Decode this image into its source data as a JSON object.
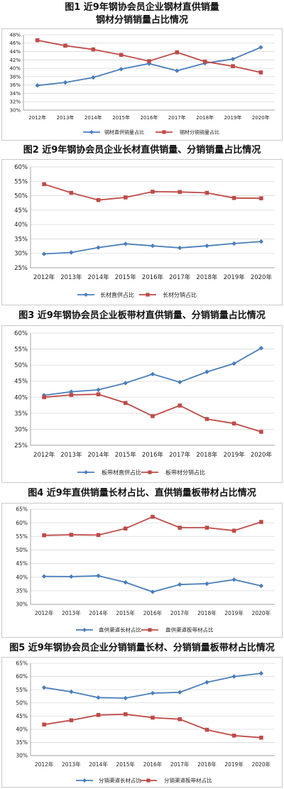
{
  "charts": [
    {
      "title": [
        "图1 近9年钢协会员企业钢材直供销量",
        "钢材分销销量占比情况"
      ],
      "chart_data": {
        "type": "line",
        "categories": [
          "2012年",
          "2013年",
          "2014年",
          "2015年",
          "2016年",
          "2017年",
          "2018年",
          "2019年",
          "2020年"
        ],
        "ylim": [
          30,
          48
        ],
        "ystep": 2,
        "yticks": [
          "30%",
          "32%",
          "34%",
          "36%",
          "38%",
          "40%",
          "42%",
          "44%",
          "46%",
          "48%"
        ],
        "series": [
          {
            "name": "钢材直供销量占比",
            "color": "#4a7ebb",
            "marker": "diamond",
            "values": [
              35.9,
              36.6,
              37.8,
              39.8,
              41.1,
              39.4,
              41.2,
              42.2,
              45.0
            ]
          },
          {
            "name": "钢材分销销量占比",
            "color": "#be4b48",
            "marker": "square",
            "values": [
              46.7,
              45.4,
              44.5,
              43.2,
              41.7,
              43.8,
              41.6,
              40.5,
              39.0
            ]
          }
        ],
        "grid": true,
        "legend": "bottom"
      }
    },
    {
      "title": [
        "图2 近9年钢协会员企业长材直供销量、分销销量占比情况"
      ],
      "chart_data": {
        "type": "line",
        "categories": [
          "2012年",
          "2013年",
          "2014年",
          "2015年",
          "2016年",
          "2017年",
          "2018年",
          "2019年",
          "2020年"
        ],
        "ylim": [
          25,
          60
        ],
        "ystep": 5,
        "yticks": [
          "25%",
          "30%",
          "35%",
          "40%",
          "45%",
          "50%",
          "55%",
          "60%"
        ],
        "series": [
          {
            "name": "长材直供占比",
            "color": "#4a7ebb",
            "marker": "diamond",
            "values": [
              29.8,
              30.3,
              32.0,
              33.3,
              32.6,
              31.9,
              32.6,
              33.4,
              34.1
            ]
          },
          {
            "name": "长材分销占比",
            "color": "#be4b48",
            "marker": "square",
            "values": [
              54.0,
              51.0,
              48.5,
              49.4,
              51.4,
              51.3,
              51.0,
              49.2,
              49.1
            ]
          }
        ],
        "grid": true,
        "legend": "bottom"
      }
    },
    {
      "title": [
        "图3 近9年钢协会员企业板带材直供销量、分销销量占比情况"
      ],
      "chart_data": {
        "type": "line",
        "categories": [
          "2012年",
          "2013年",
          "2014年",
          "2015年",
          "2016年",
          "2017年",
          "2018年",
          "2019年",
          "2020年"
        ],
        "ylim": [
          25,
          60
        ],
        "ystep": 5,
        "yticks": [
          "25%",
          "30%",
          "35%",
          "40%",
          "45%",
          "50%",
          "55%",
          "60%"
        ],
        "series": [
          {
            "name": "板带材直供占比",
            "color": "#4a7ebb",
            "marker": "diamond",
            "values": [
              40.6,
              41.7,
              42.3,
              44.4,
              47.2,
              44.7,
              47.9,
              50.5,
              55.3
            ]
          },
          {
            "name": "板带材分销占比",
            "color": "#be4b48",
            "marker": "square",
            "values": [
              40.0,
              40.7,
              40.9,
              38.2,
              34.1,
              37.4,
              33.2,
              31.8,
              29.2
            ]
          }
        ],
        "grid": true,
        "legend": "bottom"
      }
    },
    {
      "title": [
        "图4 近9年直供销量长材占比、直供销量板带材占比情况"
      ],
      "chart_data": {
        "type": "line",
        "categories": [
          "2012年",
          "2013年",
          "2014年",
          "2015年",
          "2016年",
          "2017年",
          "2018年",
          "2019年",
          "2020年"
        ],
        "ylim": [
          30,
          65
        ],
        "ystep": 5,
        "yticks": [
          "30%",
          "35%",
          "40%",
          "45%",
          "50%",
          "55%",
          "60%",
          "65%"
        ],
        "series": [
          {
            "name": "直供渠道长材占比",
            "color": "#4a7ebb",
            "marker": "diamond",
            "values": [
              40.3,
              40.2,
              40.5,
              38.1,
              34.6,
              37.3,
              37.6,
              39.1,
              36.8
            ]
          },
          {
            "name": "直供渠道板带材占比",
            "color": "#be4b48",
            "marker": "square",
            "values": [
              55.4,
              55.6,
              55.5,
              57.9,
              62.2,
              58.2,
              58.2,
              57.1,
              60.3
            ]
          }
        ],
        "grid": true,
        "legend": "bottom"
      }
    },
    {
      "title": [
        "图5 近9年钢协会员企业分销销量长材、分销销量板带材占比情况"
      ],
      "chart_data": {
        "type": "line",
        "categories": [
          "2012年",
          "2013年",
          "2014年",
          "2015年",
          "2016年",
          "2017年",
          "2018年",
          "2019年",
          "2020年"
        ],
        "ylim": [
          30,
          65
        ],
        "ystep": 5,
        "yticks": [
          "30%",
          "35%",
          "40%",
          "45%",
          "50%",
          "55%",
          "60%",
          "65%"
        ],
        "series": [
          {
            "name": "分销渠道长材占比",
            "color": "#4a7ebb",
            "marker": "diamond",
            "values": [
              55.8,
              54.2,
              52.0,
              51.8,
              53.7,
              54.0,
              57.8,
              60.0,
              61.2
            ]
          },
          {
            "name": "分销渠道板带材占比",
            "color": "#be4b48",
            "marker": "square",
            "values": [
              41.8,
              43.4,
              45.4,
              45.7,
              44.4,
              43.8,
              39.8,
              37.6,
              36.8
            ]
          }
        ],
        "grid": true,
        "legend": "bottom"
      }
    }
  ]
}
